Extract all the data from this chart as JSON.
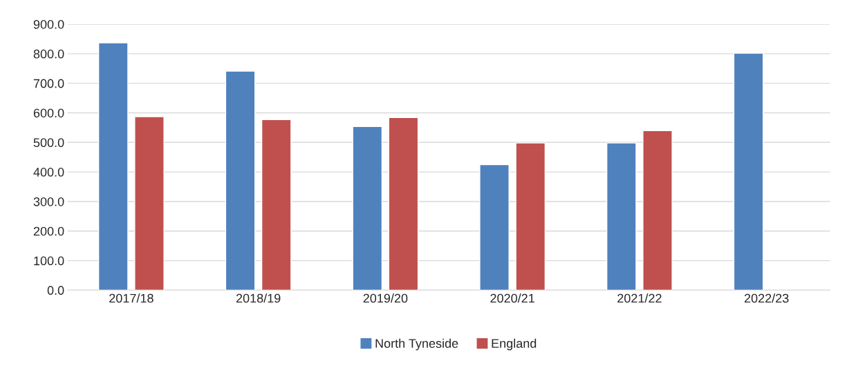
{
  "chart_data": {
    "type": "bar",
    "categories": [
      "2017/18",
      "2018/19",
      "2019/20",
      "2020/21",
      "2021/22",
      "2022/23"
    ],
    "series": [
      {
        "name": "North Tyneside",
        "color": "#4f81bd",
        "values": [
          837,
          741,
          554,
          425,
          498,
          802
        ]
      },
      {
        "name": "England",
        "color": "#c0504d",
        "values": [
          587,
          577,
          584,
          498,
          540,
          null
        ]
      }
    ],
    "ylim": [
      0,
      900
    ],
    "yticks": [
      {
        "value": 0,
        "label": "0.0"
      },
      {
        "value": 100,
        "label": "100.0"
      },
      {
        "value": 200,
        "label": "200.0"
      },
      {
        "value": 300,
        "label": "300.0"
      },
      {
        "value": 400,
        "label": "400.0"
      },
      {
        "value": 500,
        "label": "500.0"
      },
      {
        "value": 600,
        "label": "600.0"
      },
      {
        "value": 700,
        "label": "700.0"
      },
      {
        "value": 800,
        "label": "800.0"
      },
      {
        "value": 900,
        "label": "900.0"
      }
    ],
    "grid": "y",
    "legend": "bottom"
  }
}
